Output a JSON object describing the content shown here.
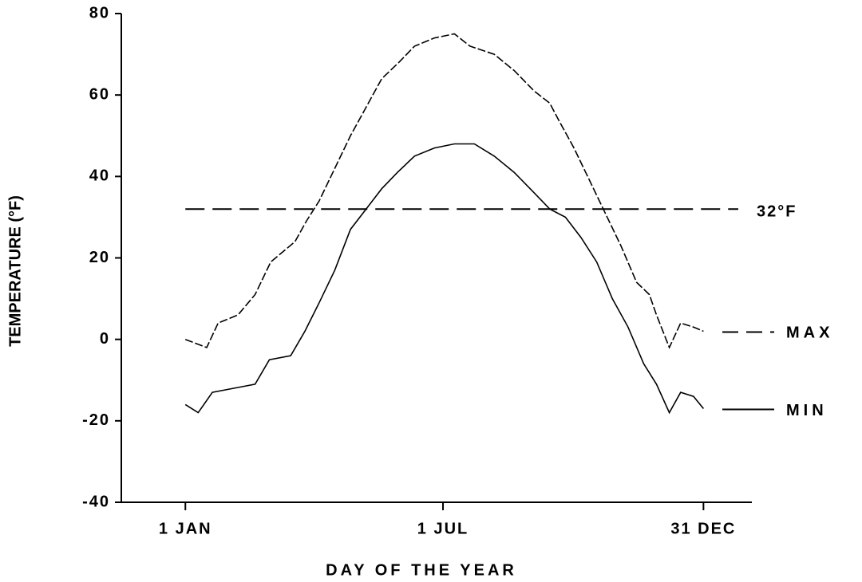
{
  "chart_data": {
    "type": "line",
    "x_label": "DAY OF THE YEAR",
    "y_label": "TEMPERATURE (°F)",
    "xlim": [
      -44,
      399
    ],
    "ylim": [
      -40,
      80
    ],
    "xticks": [
      {
        "value": 1,
        "label": "1 JAN"
      },
      {
        "value": 182,
        "label": "1 JUL"
      },
      {
        "value": 365,
        "label": "31 DEC"
      }
    ],
    "yticks": [
      -40,
      -20,
      0,
      20,
      40,
      60,
      80
    ],
    "reference_line": {
      "value": 32,
      "label": "32°F",
      "style": "dashed"
    },
    "series": [
      {
        "name": "MAX",
        "color": "#000000",
        "style": "dashed",
        "x": [
          1,
          16,
          24,
          38,
          50,
          61,
          78,
          86,
          95,
          106,
          117,
          128,
          139,
          151,
          162,
          176,
          190,
          201,
          218,
          232,
          246,
          257,
          263,
          274,
          285,
          296,
          307,
          318,
          327,
          332,
          341,
          349,
          358,
          365
        ],
        "values": [
          0,
          -2,
          4,
          6,
          11,
          19,
          24,
          29,
          34,
          42,
          50,
          57,
          64,
          68,
          72,
          74,
          75,
          72,
          70,
          66,
          61,
          58,
          54,
          47,
          39,
          31,
          23,
          14,
          11,
          6,
          -2,
          4,
          3,
          2
        ]
      },
      {
        "name": "MIN",
        "color": "#000000",
        "style": "solid",
        "x": [
          1,
          10,
          20,
          35,
          50,
          60,
          75,
          85,
          95,
          106,
          117,
          128,
          139,
          150,
          162,
          176,
          190,
          204,
          218,
          232,
          246,
          257,
          268,
          279,
          290,
          301,
          312,
          323,
          332,
          341,
          349,
          358,
          365
        ],
        "values": [
          -16,
          -18,
          -13,
          -12,
          -11,
          -5,
          -4,
          2,
          9,
          17,
          27,
          32,
          37,
          41,
          45,
          47,
          48,
          48,
          45,
          41,
          36,
          32,
          30,
          25,
          19,
          10,
          3,
          -6,
          -11,
          -18,
          -13,
          -14,
          -17
        ]
      }
    ]
  }
}
